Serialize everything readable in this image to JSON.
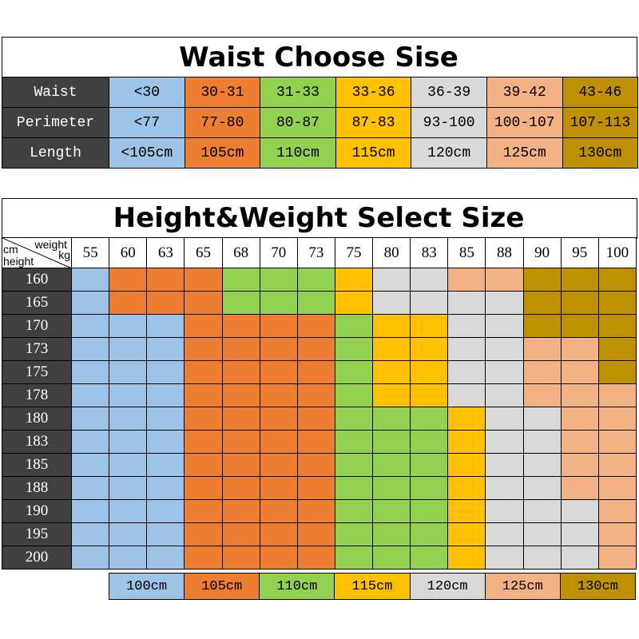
{
  "colors": {
    "row_header_bg": "#404040",
    "sizes": [
      "#9DC3E6",
      "#ED7D31",
      "#92D050",
      "#FFC000",
      "#D9D9D9",
      "#F4B183",
      "#BF9000"
    ]
  },
  "waist_table": {
    "title": "Waist Choose Sise",
    "rows": [
      {
        "label": "Waist",
        "values": [
          "<30",
          "30-31",
          "31-33",
          "33-36",
          "36-39",
          "39-42",
          "43-46"
        ]
      },
      {
        "label": "Perimeter",
        "values": [
          "<77",
          "77-80",
          "80-87",
          "87-83",
          "93-100",
          "100-107",
          "107-113"
        ]
      },
      {
        "label": "Length",
        "values": [
          "<105cm",
          "105cm",
          "110cm",
          "115cm",
          "120cm",
          "125cm",
          "130cm"
        ]
      }
    ]
  },
  "size_table": {
    "title": "Height&Weight Select Size",
    "corner": {
      "top_left": "cm",
      "top_right": "weight",
      "bottom_right": "kg",
      "bottom_left": "height"
    },
    "weights": [
      "55",
      "60",
      "63",
      "65",
      "68",
      "70",
      "73",
      "75",
      "80",
      "83",
      "85",
      "88",
      "90",
      "95",
      "100"
    ],
    "heights": [
      "160",
      "165",
      "170",
      "173",
      "175",
      "178",
      "180",
      "183",
      "185",
      "188",
      "190",
      "195",
      "200"
    ],
    "size_index_grid": [
      [
        0,
        1,
        1,
        1,
        2,
        2,
        2,
        3,
        4,
        4,
        5,
        5,
        6,
        6,
        6
      ],
      [
        0,
        1,
        1,
        1,
        2,
        2,
        2,
        3,
        4,
        4,
        4,
        4,
        6,
        6,
        6
      ],
      [
        0,
        0,
        0,
        1,
        1,
        1,
        1,
        2,
        3,
        3,
        4,
        4,
        6,
        6,
        6
      ],
      [
        0,
        0,
        0,
        1,
        1,
        1,
        1,
        2,
        3,
        3,
        4,
        4,
        5,
        5,
        6
      ],
      [
        0,
        0,
        0,
        1,
        1,
        1,
        1,
        2,
        3,
        3,
        4,
        4,
        5,
        5,
        6
      ],
      [
        0,
        0,
        0,
        1,
        1,
        1,
        1,
        2,
        3,
        3,
        4,
        4,
        5,
        5,
        5
      ],
      [
        0,
        0,
        0,
        1,
        1,
        1,
        1,
        2,
        2,
        2,
        3,
        4,
        4,
        5,
        5
      ],
      [
        0,
        0,
        0,
        1,
        1,
        1,
        1,
        2,
        2,
        2,
        3,
        4,
        4,
        5,
        5
      ],
      [
        0,
        0,
        0,
        1,
        1,
        1,
        1,
        2,
        2,
        2,
        3,
        4,
        4,
        5,
        5
      ],
      [
        0,
        0,
        0,
        1,
        1,
        1,
        1,
        2,
        2,
        2,
        3,
        4,
        4,
        5,
        5
      ],
      [
        0,
        0,
        0,
        1,
        1,
        1,
        1,
        2,
        2,
        2,
        3,
        4,
        4,
        4,
        5
      ],
      [
        0,
        0,
        0,
        1,
        1,
        1,
        1,
        2,
        2,
        2,
        3,
        4,
        4,
        4,
        5
      ],
      [
        0,
        0,
        0,
        1,
        1,
        1,
        1,
        2,
        2,
        2,
        3,
        4,
        4,
        4,
        5
      ]
    ]
  },
  "legend": [
    "100cm",
    "105cm",
    "110cm",
    "115cm",
    "120cm",
    "125cm",
    "130cm"
  ]
}
